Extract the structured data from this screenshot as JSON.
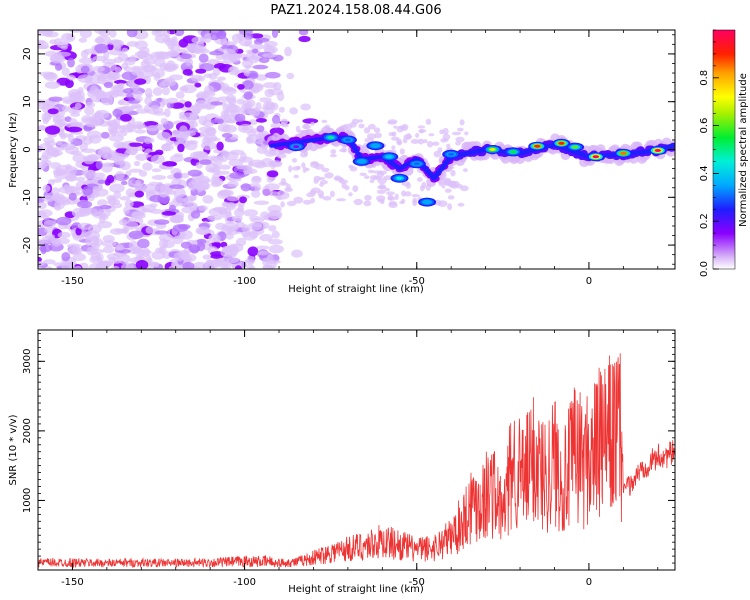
{
  "figure_title": "PAZ1.2024.158.08.44.G06",
  "chart_data": [
    {
      "type": "heatmap",
      "xlabel": "Height of straight line (km)",
      "ylabel": "Frequency (Hz)",
      "xlim": [
        -160,
        25
      ],
      "ylim": [
        -25,
        25
      ],
      "xticks": [
        -150,
        -100,
        -50,
        0
      ],
      "yticks": [
        -20,
        -10,
        0,
        10,
        20
      ],
      "colorbar": {
        "label": "Normalized spectral amplitude",
        "range": [
          0.0,
          1.0
        ],
        "ticks": [
          0.0,
          0.2,
          0.4,
          0.6,
          0.8
        ],
        "colormap": "rainbow"
      },
      "ridge_frequency": [
        {
          "x": -92,
          "y": 0.8
        },
        {
          "x": -80,
          "y": 2.0
        },
        {
          "x": -75,
          "y": 2.5
        },
        {
          "x": -70,
          "y": 2.5
        },
        {
          "x": -66,
          "y": -2.0
        },
        {
          "x": -60,
          "y": -1.5
        },
        {
          "x": -55,
          "y": -4.0
        },
        {
          "x": -50,
          "y": -2.0
        },
        {
          "x": -45,
          "y": -6.0
        },
        {
          "x": -40,
          "y": -1.5
        },
        {
          "x": -30,
          "y": 0.0
        },
        {
          "x": -20,
          "y": -0.8
        },
        {
          "x": -10,
          "y": 1.0
        },
        {
          "x": 0,
          "y": -1.5
        },
        {
          "x": 10,
          "y": -1.0
        },
        {
          "x": 20,
          "y": -0.2
        },
        {
          "x": 25,
          "y": 1.0
        }
      ],
      "peak_spots": [
        {
          "x": -85,
          "y": 0.6,
          "value": 0.15
        },
        {
          "x": -75,
          "y": 2.5,
          "value": 0.5
        },
        {
          "x": -70,
          "y": 2.0,
          "value": 0.3
        },
        {
          "x": -66,
          "y": -2.5,
          "value": 0.35
        },
        {
          "x": -62,
          "y": 0.8,
          "value": 0.35
        },
        {
          "x": -58,
          "y": -1.5,
          "value": 0.4
        },
        {
          "x": -55,
          "y": -6.0,
          "value": 0.45
        },
        {
          "x": -50,
          "y": -3.0,
          "value": 0.3
        },
        {
          "x": -47,
          "y": -11.0,
          "value": 0.35
        },
        {
          "x": -40,
          "y": -1.0,
          "value": 0.3
        },
        {
          "x": -28,
          "y": 0.0,
          "value": 0.75
        },
        {
          "x": -22,
          "y": -0.5,
          "value": 0.55
        },
        {
          "x": -15,
          "y": 0.7,
          "value": 0.9
        },
        {
          "x": -8,
          "y": 1.3,
          "value": 0.9
        },
        {
          "x": -4,
          "y": 0.5,
          "value": 0.6
        },
        {
          "x": 2,
          "y": -1.5,
          "value": 1.0
        },
        {
          "x": 10,
          "y": -0.8,
          "value": 0.85
        },
        {
          "x": 20,
          "y": -0.2,
          "value": 1.0
        }
      ]
    },
    {
      "type": "line",
      "xlabel": "Height of straight line (km)",
      "ylabel": "SNR (10 * v/v)",
      "xlim": [
        -160,
        25
      ],
      "ylim": [
        0,
        3450
      ],
      "xticks": [
        -150,
        -100,
        -50,
        0
      ],
      "yticks": [
        1000,
        2000,
        3000
      ],
      "color": "#ee3333",
      "series": [
        {
          "x": [
            -160,
            -150,
            -140,
            -130,
            -120,
            -110,
            -100,
            -90,
            -85,
            -80,
            -75,
            -70,
            -65,
            -60,
            -55,
            -50,
            -45,
            -40,
            -37,
            -34,
            -31,
            -28,
            -25,
            -22,
            -19,
            -16,
            -13,
            -10,
            -7,
            -4,
            -1,
            2,
            5,
            8,
            9,
            10,
            12,
            15,
            20,
            25
          ],
          "y": [
            120,
            120,
            110,
            115,
            110,
            120,
            150,
            150,
            170,
            260,
            380,
            450,
            520,
            610,
            540,
            430,
            480,
            700,
            1000,
            1450,
            1500,
            1750,
            1150,
            2300,
            1900,
            2400,
            2000,
            2350,
            1900,
            2500,
            2300,
            2600,
            2750,
            2950,
            3000,
            1300,
            1300,
            1550,
            1750,
            1800
          ]
        }
      ]
    }
  ]
}
